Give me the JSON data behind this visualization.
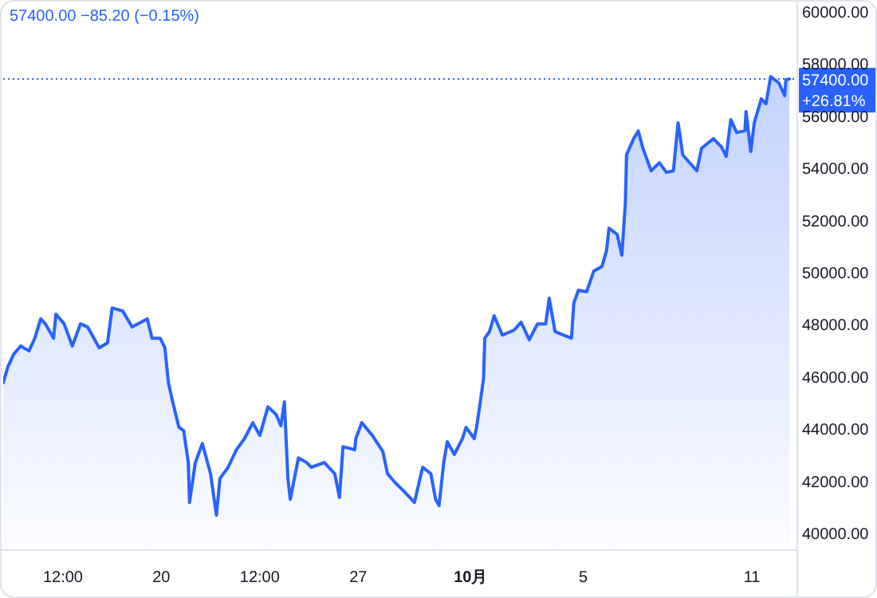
{
  "chart_data": {
    "type": "area",
    "title": "57400.00 −85.20 (−0.15%)",
    "x": [
      "--09-14T09:00",
      "--09-14T13:00",
      "--09-14T18:00",
      "--09-15T00:00",
      "--09-15T07:00",
      "--09-15T12:00",
      "--09-15T17:00",
      "--09-15T21:00",
      "--09-16T04:00",
      "--09-16T06:00",
      "--09-16T13:00",
      "--09-16T20:00",
      "--09-17T03:00",
      "--09-17T09:00",
      "--09-17T19:00",
      "--09-18T02:00",
      "--09-18T06:00",
      "--09-18T15:00",
      "--09-18T23:00",
      "--09-19T12:00",
      "--09-19T16:00",
      "--09-19T23:00",
      "--09-20T03:00",
      "--09-20T06:00",
      "--09-20T10:00",
      "--09-20T15:00",
      "--09-20T19:00",
      "--09-20T23:00",
      "--09-21T00:00",
      "--09-21T05:00",
      "--09-21T11:00",
      "--09-21T18:00",
      "--09-21T23:00",
      "--09-22T02:00",
      "--09-22T09:00",
      "--09-22T16:00",
      "--09-22T23:00",
      "--09-23T06:00",
      "--09-23T12:00",
      "--09-23T19:00",
      "--09-24T02:00",
      "--09-24T06:00",
      "--09-24T09:00",
      "--09-24T12:00",
      "--09-24T14:00",
      "--09-24T21:00",
      "--09-25T04:00",
      "--09-25T08:00",
      "--09-25T19:00",
      "--09-26T04:00",
      "--09-26T08:00",
      "--09-26T11:00",
      "--09-26T21:00",
      "--09-26T22:00",
      "--09-27T03:00",
      "--09-27T12:00",
      "--09-27T21:00",
      "--09-28T01:00",
      "--09-28T08:00",
      "--09-28T15:00",
      "--09-29T00:00",
      "--09-29T07:00",
      "--09-29T14:00",
      "--09-29T18:00",
      "--09-29T21:00",
      "--09-30T01:00",
      "--09-30T04:00",
      "--09-30T10:00",
      "--09-30T17:00",
      "--09-30T20:00",
      "--10-01T03:00",
      "--10-01T05:00",
      "--10-01T08:00",
      "--10-01T11:00",
      "--10-01T12:00",
      "--10-01T16:00",
      "--10-01T20:00",
      "--10-02T03:00",
      "--10-02T13:00",
      "--10-02T19:00",
      "--10-03T02:00",
      "--10-03T09:00",
      "--10-03T16:00",
      "--10-03T19:00",
      "--10-04T00:00",
      "--10-04T07:00",
      "--10-04T14:00",
      "--10-04T16:00",
      "--10-04T20:00",
      "--10-05T03:00",
      "--10-05T09:00",
      "--10-05T16:00",
      "--10-05T20:00",
      "--10-05T22:00",
      "--10-06T05:00",
      "--10-06T09:00",
      "--10-06T12:00",
      "--10-06T13:00",
      "--10-06T19:00",
      "--10-06T23:00",
      "--10-07T03:00",
      "--10-07T10:00",
      "--10-07T17:00",
      "--10-07T23:00",
      "--10-08T05:00",
      "--10-08T09:00",
      "--10-08T13:00",
      "--10-08T20:00",
      "--10-09T01:00",
      "--10-09T05:00",
      "--10-09T15:00",
      "--10-09T22:00",
      "--10-10T02:00",
      "--10-10T06:00",
      "--10-10T11:00",
      "--10-10T18:00",
      "--10-10T19:00",
      "--10-10T23:00",
      "--10-11T02:00",
      "--10-11T08:00",
      "--10-11T12:00",
      "--10-11T16:00",
      "--10-11T23:00",
      "--10-12T04:00",
      "--10-12T05:00",
      "--10-12T08:00"
    ],
    "series": [
      {
        "color": "#2962ff",
        "values": [
          45750,
          46360,
          46850,
          47160,
          46970,
          47460,
          48200,
          48010,
          47460,
          48380,
          48010,
          47160,
          48010,
          47890,
          47090,
          47280,
          48620,
          48500,
          47890,
          48200,
          47460,
          47460,
          47090,
          45750,
          44950,
          44040,
          43910,
          42690,
          41160,
          42690,
          43420,
          42260,
          40670,
          42080,
          42510,
          43180,
          43610,
          44220,
          43730,
          44830,
          44530,
          44100,
          45020,
          42080,
          41280,
          42870,
          42690,
          42510,
          42690,
          42260,
          41350,
          43300,
          43180,
          43610,
          44220,
          43730,
          43120,
          42260,
          41900,
          41590,
          41160,
          42510,
          42260,
          41280,
          41040,
          42690,
          43490,
          43000,
          43610,
          44040,
          43610,
          44040,
          44950,
          45930,
          47460,
          47710,
          48320,
          47580,
          47770,
          48070,
          47400,
          48010,
          48010,
          48990,
          47710,
          47580,
          47460,
          48810,
          49300,
          49240,
          50030,
          50210,
          50830,
          51680,
          51440,
          50640,
          52660,
          54490,
          55110,
          55410,
          54740,
          53880,
          54190,
          53820,
          53880,
          55720,
          54490,
          54130,
          53880,
          54740,
          55110,
          54800,
          54430,
          55840,
          55350,
          55410,
          56150,
          54620,
          55720,
          56640,
          56450,
          57490,
          57250,
          56760,
          57370,
          57400
        ]
      }
    ],
    "xlim": [
      "--09-14T09:00",
      "--10-12T12:00"
    ],
    "ylim": [
      39330,
      60430
    ],
    "xticks": [
      {
        "value": "--09-16T12:00",
        "label": "12:00"
      },
      {
        "value": "--09-20",
        "label": "20"
      },
      {
        "value": "--09-23T12:00",
        "label": "12:00"
      },
      {
        "value": "--09-27",
        "label": "27"
      },
      {
        "value": "--10-01",
        "label": "10月"
      },
      {
        "value": "--10-05",
        "label": "5"
      },
      {
        "value": "--10-11",
        "label": "11"
      }
    ],
    "yticks": [
      {
        "value": 40000,
        "label": "40000.00"
      },
      {
        "value": 42000,
        "label": "42000.00"
      },
      {
        "value": 44000,
        "label": "44000.00"
      },
      {
        "value": 46000,
        "label": "46000.00"
      },
      {
        "value": 48000,
        "label": "48000.00"
      },
      {
        "value": 50000,
        "label": "50000.00"
      },
      {
        "value": 52000,
        "label": "52000.00"
      },
      {
        "value": 54000,
        "label": "54000.00"
      },
      {
        "value": 56000,
        "label": "56000.00"
      },
      {
        "value": 58000,
        "label": "58000.00"
      },
      {
        "value": 60000,
        "label": "60000.00"
      }
    ],
    "ref_lines": [
      {
        "axis": "y",
        "value": 57400,
        "label": "57400.00\n+26.81%",
        "color": "#2962ff",
        "line_style": "dotted"
      }
    ]
  }
}
